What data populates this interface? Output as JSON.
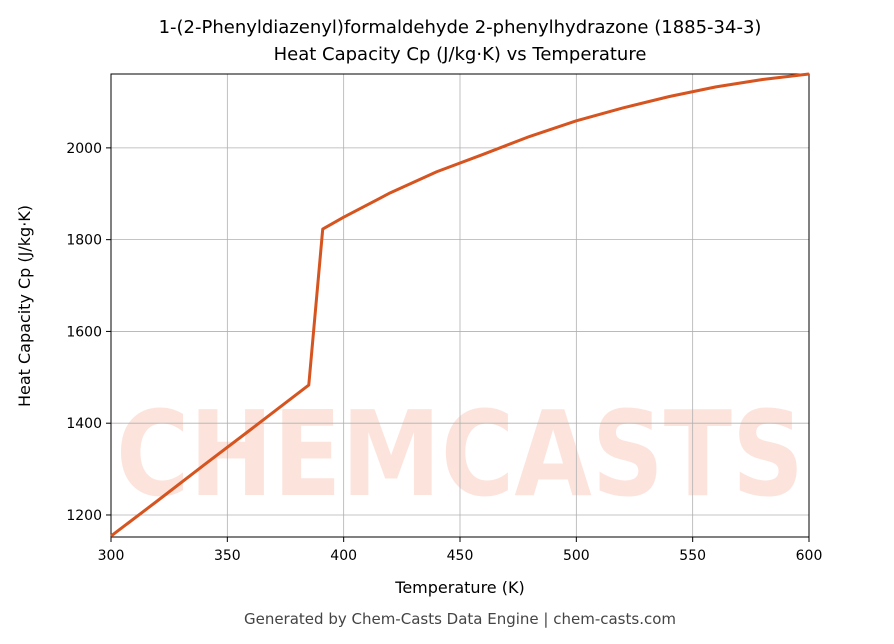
{
  "chart_data": {
    "type": "line",
    "title": "1-(2-Phenyldiazenyl)formaldehyde 2-phenylhydrazone (1885-34-3)",
    "subtitle": "Heat Capacity Cp (J/kg·K) vs Temperature",
    "x_label": "Temperature (K)",
    "y_label": "Heat Capacity Cp (J/kg·K)",
    "footer": "Generated by Chem-Casts Data Engine | chem-casts.com",
    "watermark": "CHEMCASTS",
    "x": [
      300,
      320,
      340,
      360,
      385,
      391,
      400,
      420,
      440,
      460,
      480,
      500,
      520,
      540,
      560,
      580,
      600
    ],
    "series": [
      {
        "name": "Cp",
        "color": "#d6541f",
        "values": [
          1154,
          1231,
          1309,
          1386,
          1483,
          1823,
          1849,
          1902,
          1948,
          1986,
          2025,
          2059,
          2087,
          2112,
          2133,
          2149,
          2161
        ]
      }
    ],
    "xlim": [
      300,
      600
    ],
    "ylim": [
      1152,
      2161
    ],
    "xticks": [
      300,
      350,
      400,
      450,
      500,
      550,
      600
    ],
    "yticks": [
      1200,
      1400,
      1600,
      1800,
      2000
    ],
    "grid": true
  }
}
